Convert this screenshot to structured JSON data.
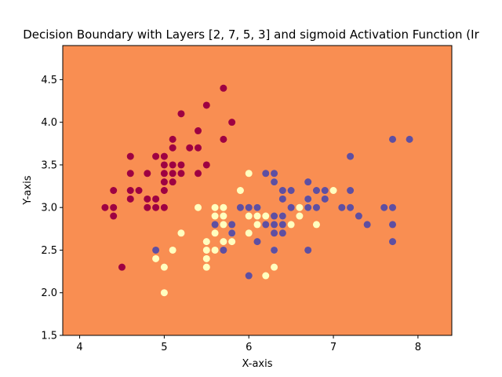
{
  "chart_data": {
    "type": "scatter",
    "title": "Decision Boundary with Layers [2, 7, 5, 3] and sigmoid Activation Function (Ir",
    "xlabel": "X-axis",
    "ylabel": "Y-axis",
    "xlim": [
      3.8,
      8.4
    ],
    "ylim": [
      1.5,
      4.9
    ],
    "xticks": [
      "4",
      "5",
      "6",
      "7",
      "8"
    ],
    "xtick_values": [
      4,
      5,
      6,
      7,
      8
    ],
    "yticks": [
      "1.5",
      "2.0",
      "2.5",
      "3.0",
      "3.5",
      "4.0",
      "4.5"
    ],
    "ytick_values": [
      1.5,
      2.0,
      2.5,
      3.0,
      3.5,
      4.0,
      4.5
    ],
    "grid": false,
    "background_region_color": "#f98e52",
    "series": [
      {
        "color": "#9e0142",
        "points": [
          [
            4.3,
            3.0
          ],
          [
            4.4,
            2.9
          ],
          [
            4.4,
            3.0
          ],
          [
            4.4,
            3.2
          ],
          [
            4.5,
            2.3
          ],
          [
            4.6,
            3.1
          ],
          [
            4.6,
            3.2
          ],
          [
            4.6,
            3.4
          ],
          [
            4.6,
            3.6
          ],
          [
            4.7,
            3.2
          ],
          [
            4.8,
            3.0
          ],
          [
            4.8,
            3.1
          ],
          [
            4.8,
            3.4
          ],
          [
            4.9,
            3.0
          ],
          [
            4.9,
            3.1
          ],
          [
            4.9,
            3.6
          ],
          [
            5.0,
            3.0
          ],
          [
            5.0,
            3.2
          ],
          [
            5.0,
            3.3
          ],
          [
            5.0,
            3.4
          ],
          [
            5.0,
            3.5
          ],
          [
            5.0,
            3.6
          ],
          [
            5.1,
            3.3
          ],
          [
            5.1,
            3.4
          ],
          [
            5.1,
            3.5
          ],
          [
            5.1,
            3.7
          ],
          [
            5.1,
            3.8
          ],
          [
            5.2,
            3.4
          ],
          [
            5.2,
            3.5
          ],
          [
            5.2,
            4.1
          ],
          [
            5.3,
            3.7
          ],
          [
            5.4,
            3.4
          ],
          [
            5.4,
            3.7
          ],
          [
            5.4,
            3.9
          ],
          [
            5.5,
            3.5
          ],
          [
            5.5,
            4.2
          ],
          [
            5.7,
            3.8
          ],
          [
            5.7,
            4.4
          ],
          [
            5.8,
            4.0
          ]
        ]
      },
      {
        "color": "#ffffbf",
        "points": [
          [
            4.9,
            2.4
          ],
          [
            5.0,
            2.0
          ],
          [
            5.0,
            2.3
          ],
          [
            5.1,
            2.5
          ],
          [
            5.2,
            2.7
          ],
          [
            5.5,
            2.3
          ],
          [
            5.5,
            2.4
          ],
          [
            5.5,
            2.5
          ],
          [
            5.5,
            2.6
          ],
          [
            5.6,
            2.5
          ],
          [
            5.6,
            2.7
          ],
          [
            5.6,
            2.9
          ],
          [
            5.6,
            3.0
          ],
          [
            5.7,
            2.6
          ],
          [
            5.7,
            2.8
          ],
          [
            5.7,
            2.9
          ],
          [
            5.7,
            3.0
          ],
          [
            5.8,
            2.6
          ],
          [
            5.8,
            2.7
          ],
          [
            5.9,
            3.2
          ],
          [
            6.0,
            2.7
          ],
          [
            6.0,
            2.9
          ],
          [
            6.0,
            3.4
          ],
          [
            6.1,
            2.8
          ],
          [
            6.1,
            2.9
          ],
          [
            6.1,
            3.0
          ],
          [
            6.2,
            2.2
          ],
          [
            6.2,
            2.9
          ],
          [
            6.3,
            2.3
          ],
          [
            6.3,
            2.5
          ],
          [
            6.3,
            3.3
          ],
          [
            6.4,
            2.9
          ],
          [
            6.5,
            2.8
          ],
          [
            6.6,
            2.9
          ],
          [
            6.6,
            3.0
          ],
          [
            6.7,
            3.0
          ],
          [
            6.8,
            2.8
          ],
          [
            7.0,
            3.2
          ],
          [
            5.4,
            3.0
          ],
          [
            6.7,
            3.1
          ]
        ]
      },
      {
        "color": "#5e4fa2",
        "points": [
          [
            4.9,
            2.5
          ],
          [
            5.6,
            2.8
          ],
          [
            5.7,
            2.5
          ],
          [
            5.8,
            2.7
          ],
          [
            5.8,
            2.8
          ],
          [
            5.9,
            3.0
          ],
          [
            6.0,
            2.2
          ],
          [
            6.0,
            3.0
          ],
          [
            6.1,
            2.6
          ],
          [
            6.1,
            3.0
          ],
          [
            6.2,
            2.8
          ],
          [
            6.2,
            3.4
          ],
          [
            6.3,
            2.5
          ],
          [
            6.3,
            2.7
          ],
          [
            6.3,
            2.8
          ],
          [
            6.3,
            2.9
          ],
          [
            6.3,
            3.3
          ],
          [
            6.3,
            3.4
          ],
          [
            6.4,
            2.7
          ],
          [
            6.4,
            2.8
          ],
          [
            6.4,
            3.1
          ],
          [
            6.4,
            3.2
          ],
          [
            6.5,
            3.0
          ],
          [
            6.5,
            3.2
          ],
          [
            6.7,
            2.5
          ],
          [
            6.7,
            3.0
          ],
          [
            6.7,
            3.1
          ],
          [
            6.7,
            3.3
          ],
          [
            6.8,
            3.0
          ],
          [
            6.8,
            3.2
          ],
          [
            6.9,
            3.1
          ],
          [
            6.9,
            3.2
          ],
          [
            7.1,
            3.0
          ],
          [
            7.2,
            3.0
          ],
          [
            7.2,
            3.2
          ],
          [
            7.2,
            3.6
          ],
          [
            7.3,
            2.9
          ],
          [
            7.4,
            2.8
          ],
          [
            7.6,
            3.0
          ],
          [
            7.7,
            2.6
          ],
          [
            7.7,
            2.8
          ],
          [
            7.7,
            3.0
          ],
          [
            7.7,
            3.8
          ],
          [
            7.9,
            3.8
          ],
          [
            6.4,
            2.9
          ]
        ]
      }
    ]
  }
}
